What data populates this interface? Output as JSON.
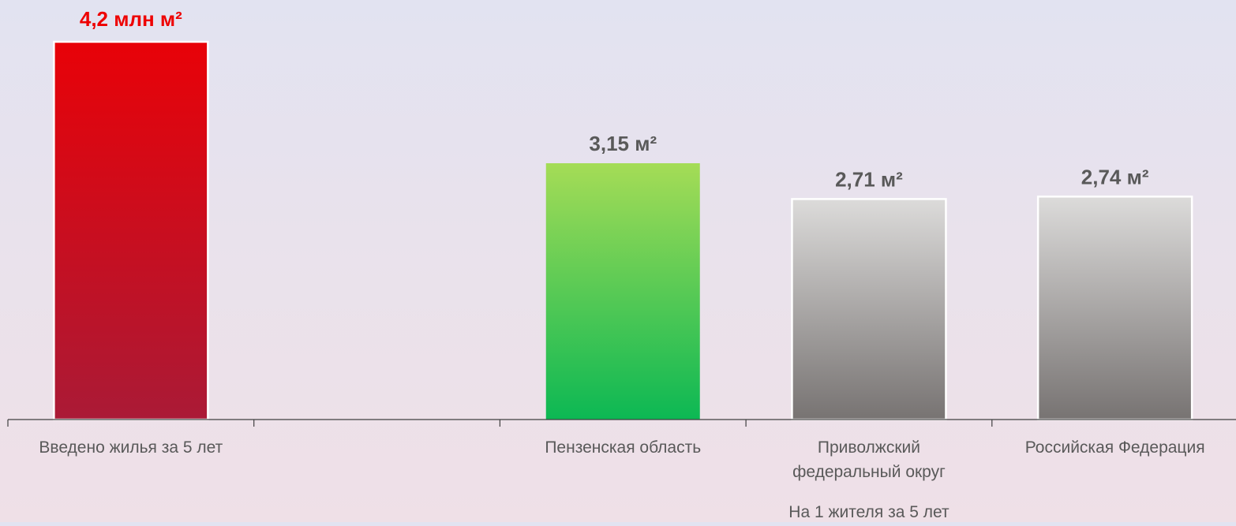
{
  "chart_data": {
    "type": "bar",
    "slots": [
      {
        "category": "Введено жилья за 5 лет",
        "value": 4.2,
        "value_label": "4,2 млн м²",
        "style": "red"
      },
      {
        "category": "",
        "value": null,
        "value_label": "",
        "style": "none"
      },
      {
        "category": "Пензенская область",
        "value": 3.15,
        "value_label": "3,15 м²",
        "style": "green"
      },
      {
        "category": "Приволжский федеральный округ",
        "category_lines": [
          "Приволжский",
          "федеральный округ"
        ],
        "value": 2.71,
        "value_label": "2,71 м²",
        "style": "gray"
      },
      {
        "category": "Российская Федерация",
        "value": 2.74,
        "value_label": "2,74 м²",
        "style": "gray"
      }
    ],
    "group_label": "На 1 жителя за 5 лет",
    "colors": {
      "highlight_text": "#ee0000",
      "value_text": "#595959",
      "category_text": "#595959",
      "axis": "#404040",
      "red_top": "#e80208",
      "red_bottom": "#aa1a36",
      "green_top": "#a5dc56",
      "green_bottom": "#0cb854",
      "gray_top": "#dcdbda",
      "gray_bottom": "#777372",
      "bar_border": "#ffffff"
    }
  }
}
